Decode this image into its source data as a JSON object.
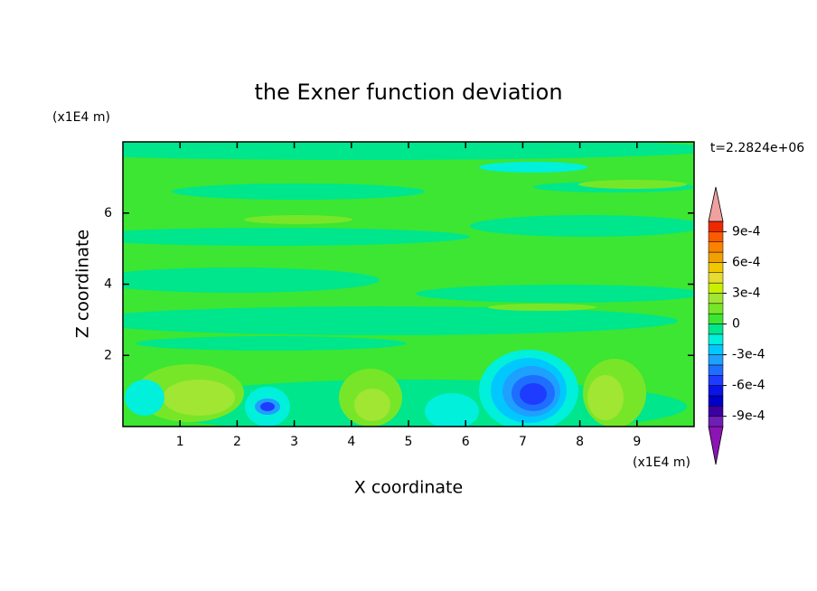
{
  "chart_data": {
    "type": "contour",
    "title": "the Exner function deviation",
    "x_label": "X coordinate",
    "y_label": "Z coordinate",
    "x_unit": "(x1E4 m)",
    "y_unit": "(x1E4 m)",
    "annotation": "t=2.2824e+06",
    "xlim": [
      0,
      10
    ],
    "xticks": [
      1,
      2,
      3,
      4,
      5,
      6,
      7,
      8,
      9
    ],
    "ylim": [
      0,
      8
    ],
    "yticks": [
      2,
      4,
      6
    ],
    "colorbar": {
      "levels": [
        -0.001,
        -0.0009,
        -0.0008,
        -0.0007,
        -0.0006,
        -0.0005,
        -0.0004,
        -0.0003,
        -0.0002,
        -0.0001,
        0,
        0.0001,
        0.0002,
        0.0003,
        0.0004,
        0.0005,
        0.0006,
        0.0007,
        0.0008,
        0.0009,
        0.001
      ],
      "colors": [
        "#8c14b4",
        "#6e1eb4",
        "#3c00a0",
        "#0000c8",
        "#0a14e6",
        "#1e3cff",
        "#1e6eff",
        "#1ea0ff",
        "#00c8ff",
        "#00f0dc",
        "#00e68c",
        "#3ce632",
        "#78e628",
        "#a0e632",
        "#c8f000",
        "#e6dc32",
        "#f0c800",
        "#f0a000",
        "#fa8200",
        "#fa5a00",
        "#f02800",
        "#f0a0a0"
      ],
      "ticks": [
        {
          "value": -0.0009,
          "label": "-9e-4"
        },
        {
          "value": -0.0006,
          "label": "-6e-4"
        },
        {
          "value": -0.0003,
          "label": "-3e-4"
        },
        0,
        {
          "value": 0.0003,
          "label": "3e-4"
        },
        {
          "value": 0.0006,
          "label": "6e-4"
        },
        {
          "value": 0.0009,
          "label": "9e-4"
        }
      ]
    }
  }
}
